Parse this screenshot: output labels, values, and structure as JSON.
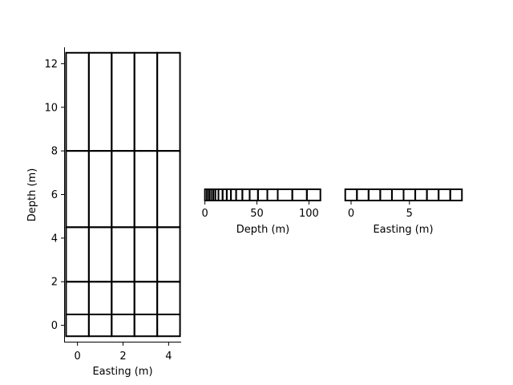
{
  "chart_data": [
    {
      "type": "mesh-grid",
      "xlabel": "Easting (m)",
      "ylabel": "Depth (m)",
      "xlim": [
        -0.55,
        4.55
      ],
      "ylim": [
        -0.75,
        12.75
      ],
      "xticks": [
        0,
        2,
        4
      ],
      "yticks": [
        0,
        2,
        4,
        6,
        8,
        10,
        12
      ],
      "x_edges": [
        -0.5,
        0.5,
        1.5,
        2.5,
        3.5,
        4.5
      ],
      "y_edges": [
        -0.5,
        0.5,
        2.0,
        4.5,
        8.0,
        12.5
      ]
    },
    {
      "type": "mesh-1d",
      "xlabel": "Depth (m)",
      "xlim": [
        -0.5,
        112
      ],
      "xticks": [
        0,
        50,
        100
      ],
      "edges": [
        0,
        2,
        4,
        6,
        8,
        10,
        13,
        17,
        21,
        25,
        30,
        36,
        43,
        51,
        60,
        70,
        84,
        98,
        111
      ]
    },
    {
      "type": "mesh-1d",
      "xlabel": "Easting (m)",
      "xlim": [
        -0.55,
        9.55
      ],
      "xticks": [
        0,
        5
      ],
      "edges": [
        -0.5,
        0.5,
        1.5,
        2.5,
        3.5,
        4.5,
        5.5,
        6.5,
        7.5,
        8.5,
        9.5
      ]
    }
  ]
}
